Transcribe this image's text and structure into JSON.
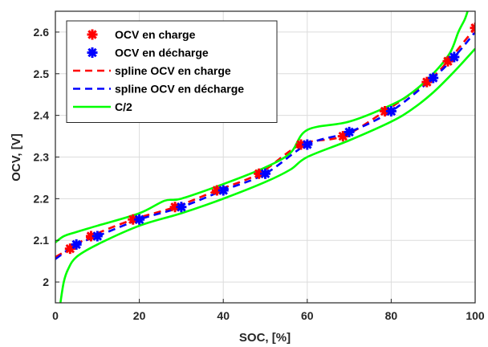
{
  "chart_data": {
    "type": "line",
    "xlabel": "SOC, [%]",
    "ylabel": "OCV, [V]",
    "xlim": [
      0,
      100
    ],
    "ylim": [
      1.95,
      2.65
    ],
    "xticks": [
      "0",
      "20",
      "40",
      "60",
      "80",
      "100"
    ],
    "yticks": [
      "2",
      "2.1",
      "2.2",
      "2.3",
      "2.4",
      "2.5",
      "2.6"
    ],
    "grid": true,
    "legend_position": "top-left",
    "series": [
      {
        "name": "OCV en charge",
        "style": "marker-star",
        "color": "#ff0000",
        "x": [
          3.5,
          8.5,
          18.5,
          28.5,
          38.5,
          48.5,
          58.5,
          68.5,
          78.5,
          88.5,
          93.5,
          100
        ],
        "y": [
          2.08,
          2.11,
          2.15,
          2.18,
          2.22,
          2.26,
          2.33,
          2.35,
          2.41,
          2.48,
          2.53,
          2.61
        ]
      },
      {
        "name": "OCV en décharge",
        "style": "marker-star",
        "color": "#0000ff",
        "x": [
          5,
          10,
          20,
          30,
          40,
          50,
          60,
          70,
          80,
          90,
          95
        ],
        "y": [
          2.09,
          2.11,
          2.15,
          2.18,
          2.22,
          2.26,
          2.33,
          2.36,
          2.41,
          2.49,
          2.54
        ]
      },
      {
        "name": "spline OCV en charge",
        "style": "dashed",
        "color": "#ff0000",
        "x": [
          0,
          3.5,
          8.5,
          18.5,
          28.5,
          38.5,
          48.5,
          58.5,
          68.5,
          78.5,
          88.5,
          93.5,
          100
        ],
        "y": [
          2.06,
          2.08,
          2.11,
          2.15,
          2.18,
          2.22,
          2.26,
          2.33,
          2.35,
          2.41,
          2.48,
          2.53,
          2.61
        ]
      },
      {
        "name": "spline OCV en décharge",
        "style": "dashed",
        "color": "#0000ff",
        "x": [
          0,
          5,
          10,
          20,
          30,
          40,
          50,
          60,
          70,
          80,
          90,
          95,
          100
        ],
        "y": [
          2.055,
          2.09,
          2.11,
          2.15,
          2.18,
          2.22,
          2.26,
          2.33,
          2.36,
          2.41,
          2.49,
          2.54,
          2.6
        ]
      },
      {
        "name": "C/2",
        "style": "solid",
        "color": "#00ff00",
        "x": [
          0,
          2,
          5,
          10,
          20,
          26,
          30,
          40,
          50,
          56,
          60,
          70,
          80,
          85,
          90,
          94,
          96,
          97.5,
          98.2
        ],
        "y": [
          2.095,
          2.11,
          2.12,
          2.135,
          2.165,
          2.195,
          2.2,
          2.235,
          2.275,
          2.31,
          2.365,
          2.385,
          2.425,
          2.455,
          2.5,
          2.55,
          2.6,
          2.63,
          2.65
        ]
      },
      {
        "name": "",
        "style": "solid",
        "color": "#00ff00",
        "x": [
          1.2,
          2,
          3,
          5,
          10,
          20,
          30,
          40,
          50,
          56,
          60,
          70,
          80,
          85,
          90,
          95,
          100
        ],
        "y": [
          1.95,
          2.0,
          2.03,
          2.06,
          2.09,
          2.135,
          2.165,
          2.2,
          2.24,
          2.27,
          2.3,
          2.34,
          2.385,
          2.415,
          2.455,
          2.505,
          2.56
        ]
      }
    ]
  }
}
